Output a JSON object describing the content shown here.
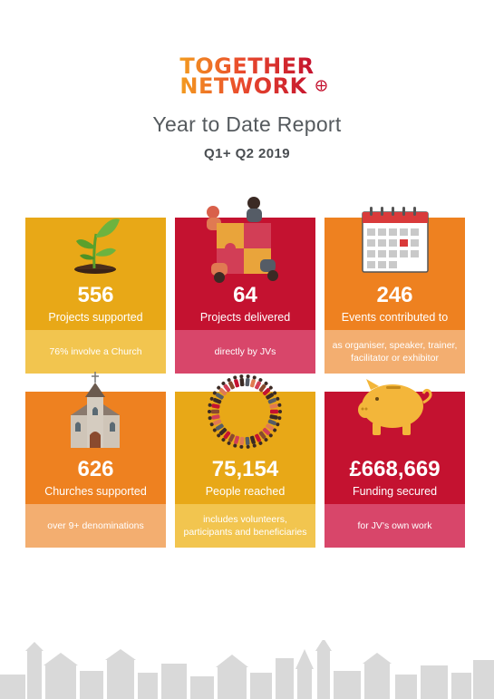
{
  "logo": {
    "line1": "TOGETHER",
    "line2": "NETWORK"
  },
  "report": {
    "title": "Year to Date Report",
    "period": "Q1+ Q2 2019"
  },
  "colors": {
    "yellow": "#e8a817",
    "yellow_note": "#f2c54f",
    "crimson": "#c41230",
    "crimson_note": "#d8466a",
    "orange": "#ee8120",
    "orange_note": "#f3ae70"
  },
  "cards": [
    {
      "number": "556",
      "label": "Projects supported",
      "note": "76% involve a Church",
      "icon": "plant-icon"
    },
    {
      "number": "64",
      "label": "Projects delivered",
      "note": "directly by JVs",
      "icon": "puzzle-people-icon"
    },
    {
      "number": "246",
      "label": "Events contributed to",
      "note": "as organiser, speaker, trainer, facilitator or exhibitor",
      "icon": "calendar-icon"
    },
    {
      "number": "626",
      "label": "Churches supported",
      "note": "over 9+ denominations",
      "icon": "church-icon"
    },
    {
      "number": "75,154",
      "label": "People reached",
      "note": "includes volunteers, participants and beneficiaries",
      "icon": "people-circle-icon"
    },
    {
      "number": "£668,669",
      "label": "Funding secured",
      "note": "for JV's own work",
      "icon": "piggy-bank-icon"
    }
  ]
}
